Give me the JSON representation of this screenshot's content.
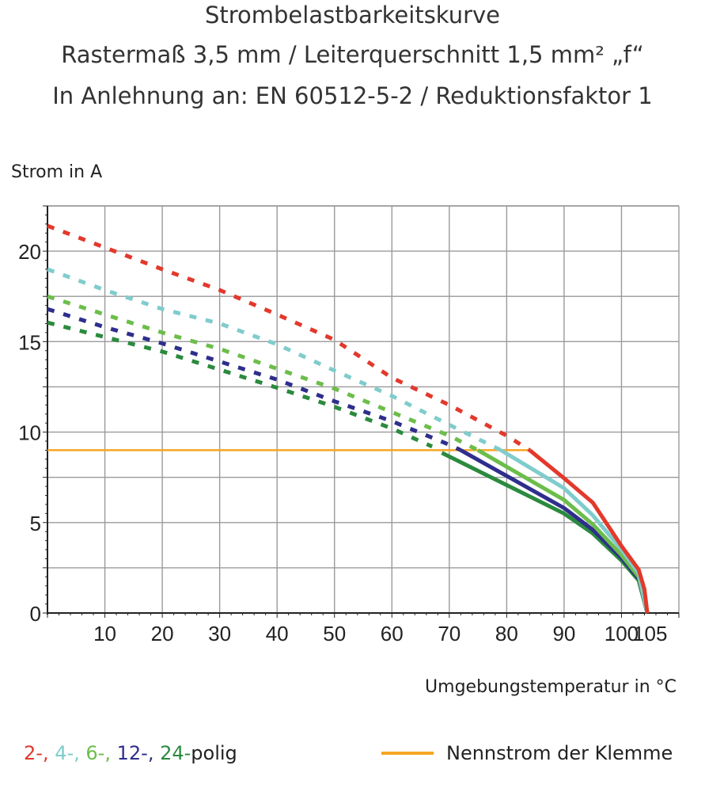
{
  "titles": [
    "Strombelastbarkeitskurve",
    "Rastermaß 3,5 mm / Leiterquerschnitt 1,5 mm² „f“",
    "In Anlehnung an: EN 60512-5-2 / Reduktionsfaktor 1"
  ],
  "chart_data": {
    "type": "line",
    "title": "Strombelastbarkeitskurve",
    "ylabel": "Strom in A",
    "xlabel": "Umgebungstemperatur in °C",
    "xlim": [
      0,
      110
    ],
    "ylim": [
      0,
      22.5
    ],
    "x_ticks": [
      "10",
      "20",
      "30",
      "40",
      "50",
      "60",
      "70",
      "80",
      "90",
      "100",
      "105"
    ],
    "x_tick_values": [
      10,
      20,
      30,
      40,
      50,
      60,
      70,
      80,
      90,
      100,
      105
    ],
    "y_ticks": [
      "0",
      "5",
      "10",
      "15",
      "20"
    ],
    "y_tick_values": [
      0,
      5,
      10,
      15,
      20
    ],
    "grid": true,
    "series": [
      {
        "name": "2-",
        "color": "#e2392c",
        "dashed": [
          [
            0,
            21.4
          ],
          [
            10,
            20.2
          ],
          [
            20,
            19.0
          ],
          [
            30,
            17.85
          ],
          [
            40,
            16.5
          ],
          [
            50,
            15.1
          ],
          [
            60,
            13.0
          ],
          [
            70,
            11.5
          ],
          [
            80,
            9.8
          ],
          [
            84,
            9.0
          ]
        ],
        "solid": [
          [
            84,
            9.0
          ],
          [
            90,
            7.45
          ],
          [
            95,
            6.1
          ],
          [
            100,
            3.7
          ],
          [
            103,
            2.4
          ],
          [
            104,
            1.3
          ],
          [
            104.5,
            0
          ]
        ]
      },
      {
        "name": "4-",
        "color": "#80cccc",
        "dashed": [
          [
            0,
            19.0
          ],
          [
            10,
            17.85
          ],
          [
            20,
            16.8
          ],
          [
            30,
            16.0
          ],
          [
            40,
            14.85
          ],
          [
            50,
            13.4
          ],
          [
            60,
            12.0
          ],
          [
            70,
            10.4
          ],
          [
            79,
            9.0
          ]
        ],
        "solid": [
          [
            79,
            9.0
          ],
          [
            90,
            6.9
          ],
          [
            95,
            5.4
          ],
          [
            100,
            3.5
          ],
          [
            103,
            2.2
          ],
          [
            104.5,
            0
          ]
        ]
      },
      {
        "name": "6-",
        "color": "#6cbd4b",
        "dashed": [
          [
            0,
            17.5
          ],
          [
            10,
            16.5
          ],
          [
            20,
            15.5
          ],
          [
            30,
            14.6
          ],
          [
            40,
            13.5
          ],
          [
            50,
            12.4
          ],
          [
            60,
            11.1
          ],
          [
            70,
            9.8
          ],
          [
            75,
            9.0
          ]
        ],
        "solid": [
          [
            75,
            9.0
          ],
          [
            90,
            6.25
          ],
          [
            95,
            4.9
          ],
          [
            100,
            3.2
          ],
          [
            103,
            2.0
          ],
          [
            104.5,
            0
          ]
        ]
      },
      {
        "name": "12-",
        "color": "#2f2e8c",
        "dashed": [
          [
            0,
            16.8
          ],
          [
            10,
            15.8
          ],
          [
            20,
            14.9
          ],
          [
            30,
            13.9
          ],
          [
            40,
            12.9
          ],
          [
            50,
            11.7
          ],
          [
            60,
            10.6
          ],
          [
            70,
            9.3
          ],
          [
            72,
            9.0
          ]
        ],
        "solid": [
          [
            72,
            9.0
          ],
          [
            90,
            5.8
          ],
          [
            95,
            4.6
          ],
          [
            100,
            3.05
          ],
          [
            103,
            1.9
          ],
          [
            104.5,
            0
          ]
        ]
      },
      {
        "name": "24-",
        "color": "#2b8a3e",
        "dashed": [
          [
            0,
            16.05
          ],
          [
            10,
            15.25
          ],
          [
            20,
            14.45
          ],
          [
            30,
            13.45
          ],
          [
            40,
            12.45
          ],
          [
            50,
            11.4
          ],
          [
            60,
            10.2
          ],
          [
            67,
            9.2
          ]
        ],
        "solid": [
          [
            68.7,
            8.85
          ],
          [
            90,
            5.5
          ],
          [
            95,
            4.4
          ],
          [
            100,
            2.9
          ],
          [
            103,
            1.8
          ],
          [
            104.5,
            0
          ]
        ]
      }
    ],
    "reference_line": {
      "name": "Nennstrom der Klemme",
      "color": "#f5a623",
      "y": 9.0,
      "x_range": [
        0,
        84
      ]
    }
  },
  "legend": {
    "series_labels": [
      "2-",
      "4-",
      "6-",
      "12-",
      "24-"
    ],
    "suffix": "polig",
    "reference_label": "Nennstrom der Klemme"
  }
}
